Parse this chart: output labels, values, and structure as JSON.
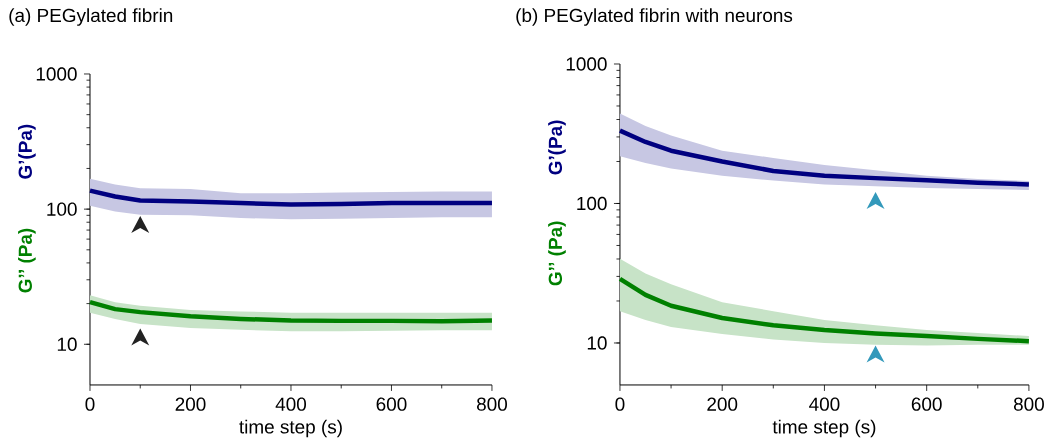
{
  "chart_data": [
    {
      "type": "line",
      "title": "(a) PEGylated fibrin",
      "xlabel": "time step (s)",
      "log": "y",
      "xlim": [
        0,
        800
      ],
      "ylim": [
        5,
        1000
      ],
      "xticks": [
        0,
        200,
        400,
        600,
        800
      ],
      "yticks": [
        10,
        100,
        1000
      ],
      "x": [
        0,
        50,
        100,
        200,
        300,
        400,
        500,
        600,
        700,
        800
      ],
      "series": [
        {
          "name": "G’(Pa)",
          "color": "#000080",
          "values": [
            137,
            124,
            116,
            114,
            111,
            108,
            109,
            111,
            111,
            111
          ],
          "upper": [
            168,
            152,
            143,
            141,
            131,
            131,
            133,
            134,
            135,
            135
          ],
          "lower": [
            106,
            96,
            91,
            90,
            86,
            84,
            85,
            86,
            87,
            87
          ]
        },
        {
          "name": "G’’ (Pa)",
          "color": "#008000",
          "values": [
            20.5,
            18.2,
            17.3,
            16.1,
            15.4,
            15.0,
            14.9,
            14.9,
            14.8,
            15.0
          ],
          "upper": [
            23.1,
            20.5,
            19.3,
            17.9,
            17.5,
            17.1,
            17.1,
            17.1,
            17.1,
            17.1
          ],
          "lower": [
            17.1,
            15.4,
            14.1,
            13.2,
            12.8,
            12.5,
            12.5,
            12.6,
            12.7,
            12.7
          ]
        }
      ]
    },
    {
      "type": "line",
      "title": "(b) PEGylated fibrin with neurons",
      "xlabel": "time step (s)",
      "log": "y",
      "xlim": [
        0,
        800
      ],
      "ylim": [
        5,
        1000
      ],
      "xticks": [
        0,
        200,
        400,
        600,
        800
      ],
      "yticks": [
        10,
        100,
        1000
      ],
      "x": [
        0,
        50,
        100,
        200,
        300,
        400,
        500,
        600,
        700,
        800
      ],
      "series": [
        {
          "name": "G’(Pa)",
          "color": "#000080",
          "values": [
            333,
            276,
            239,
            200,
            171,
            158,
            152,
            147,
            141,
            137
          ],
          "upper": [
            442,
            360,
            307,
            239,
            212,
            189,
            173,
            158,
            150,
            145
          ],
          "lower": [
            218,
            195,
            178,
            158,
            146,
            137,
            133,
            129,
            127,
            125
          ]
        },
        {
          "name": "G’’ (Pa)",
          "color": "#008000",
          "values": [
            28.8,
            22.1,
            18.5,
            15.1,
            13.4,
            12.4,
            11.7,
            11.2,
            10.7,
            10.3
          ],
          "upper": [
            40.2,
            31.5,
            26.4,
            19.6,
            16.9,
            14.6,
            13.4,
            12.4,
            11.8,
            11.2
          ],
          "lower": [
            16.9,
            14.6,
            13.0,
            11.6,
            10.6,
            10.0,
            9.7,
            9.6,
            9.7,
            9.7
          ]
        }
      ]
    }
  ]
}
